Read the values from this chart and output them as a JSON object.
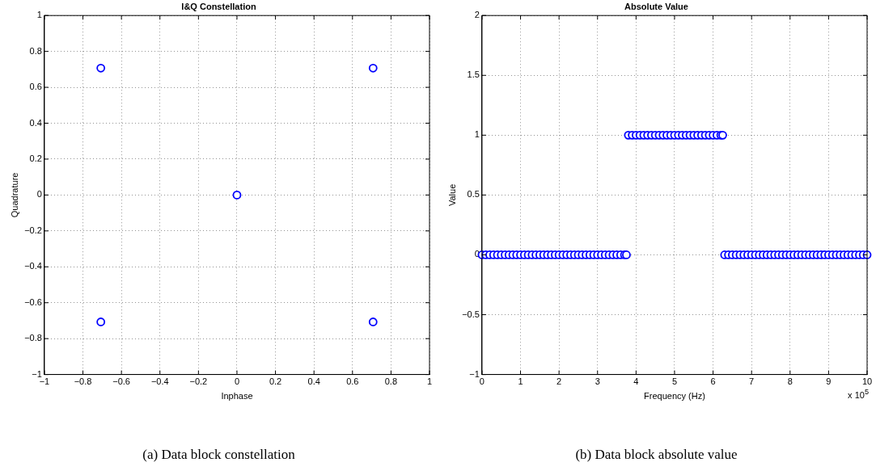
{
  "chart_data": [
    {
      "type": "scatter",
      "title": "I&Q Constellation",
      "xlabel": "Inphase",
      "ylabel": "Quadrature",
      "x": [
        -0.707,
        0.707,
        0,
        -0.707,
        0.707
      ],
      "series": [
        {
          "color": "#0000ff",
          "values": [
            0.707,
            0.707,
            0,
            -0.707,
            -0.707
          ]
        }
      ],
      "xlim": [
        -1,
        1
      ],
      "xticks": [
        -1,
        -0.8,
        -0.6,
        -0.4,
        -0.2,
        0,
        0.2,
        0.4,
        0.6,
        0.8,
        1
      ],
      "ylim": [
        -1,
        1
      ],
      "yticks": [
        -1,
        -0.8,
        -0.6,
        -0.4,
        -0.2,
        0,
        0.2,
        0.4,
        0.6,
        0.8,
        1
      ],
      "grid": true,
      "marker": "circle",
      "legend": false,
      "annotations": [
        "(a) Data block constellation"
      ]
    },
    {
      "type": "scatter",
      "title": "Absolute Value",
      "xlabel": "Frequency (Hz)",
      "ylabel": "Value",
      "x": [
        0,
        0.1,
        0.2,
        0.3,
        0.4,
        0.5,
        0.6,
        0.7,
        0.8,
        0.9,
        1,
        1.1,
        1.2,
        1.3,
        1.4,
        1.5,
        1.6,
        1.7,
        1.8,
        1.9,
        2,
        2.1,
        2.2,
        2.3,
        2.4,
        2.5,
        2.6,
        2.7,
        2.8,
        2.9,
        3,
        3.1,
        3.2,
        3.3,
        3.4,
        3.5,
        3.6,
        3.7,
        3.75,
        3.8,
        3.9,
        4,
        4.1,
        4.2,
        4.3,
        4.4,
        4.5,
        4.6,
        4.7,
        4.8,
        4.9,
        5,
        5.1,
        5.2,
        5.3,
        5.4,
        5.5,
        5.6,
        5.7,
        5.8,
        5.9,
        6,
        6.1,
        6.2,
        6.25,
        6.3,
        6.4,
        6.5,
        6.6,
        6.7,
        6.8,
        6.9,
        7,
        7.1,
        7.2,
        7.3,
        7.4,
        7.5,
        7.6,
        7.7,
        7.8,
        7.9,
        8,
        8.1,
        8.2,
        8.3,
        8.4,
        8.5,
        8.6,
        8.7,
        8.8,
        8.9,
        9,
        9.1,
        9.2,
        9.3,
        9.4,
        9.5,
        9.6,
        9.7,
        9.8,
        9.9,
        10
      ],
      "series": [
        {
          "color": "#0000ff",
          "values": [
            0,
            0,
            0,
            0,
            0,
            0,
            0,
            0,
            0,
            0,
            0,
            0,
            0,
            0,
            0,
            0,
            0,
            0,
            0,
            0,
            0,
            0,
            0,
            0,
            0,
            0,
            0,
            0,
            0,
            0,
            0,
            0,
            0,
            0,
            0,
            0,
            0,
            0,
            0,
            1,
            1,
            1,
            1,
            1,
            1,
            1,
            1,
            1,
            1,
            1,
            1,
            1,
            1,
            1,
            1,
            1,
            1,
            1,
            1,
            1,
            1,
            1,
            1,
            1,
            1,
            0,
            0,
            0,
            0,
            0,
            0,
            0,
            0,
            0,
            0,
            0,
            0,
            0,
            0,
            0,
            0,
            0,
            0,
            0,
            0,
            0,
            0,
            0,
            0,
            0,
            0,
            0,
            0,
            0,
            0,
            0,
            0,
            0,
            0,
            0,
            0,
            0,
            0
          ]
        }
      ],
      "xlim": [
        0,
        10
      ],
      "xticks": [
        0,
        1,
        2,
        3,
        4,
        5,
        6,
        7,
        8,
        9,
        10
      ],
      "ylim": [
        -1,
        2
      ],
      "yticks": [
        -1,
        -0.5,
        0,
        0.5,
        1,
        1.5,
        2
      ],
      "grid": true,
      "marker": "circle",
      "legend": false,
      "annotations": [
        "x 10$^{5}$",
        "(b) Data block absolute value"
      ]
    }
  ]
}
